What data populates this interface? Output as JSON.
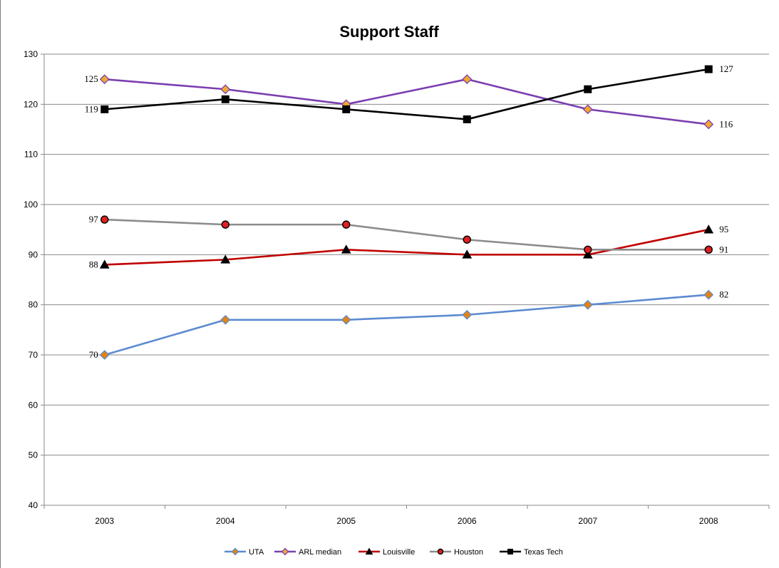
{
  "chart_data": {
    "type": "line",
    "title": "Support Staff",
    "xlabel": "",
    "ylabel": "",
    "categories": [
      "2003",
      "2004",
      "2005",
      "2006",
      "2007",
      "2008"
    ],
    "ylim": [
      40,
      130
    ],
    "yticks": [
      40,
      50,
      60,
      70,
      80,
      90,
      100,
      110,
      120,
      130
    ],
    "grid": true,
    "legend_position": "bottom",
    "series": [
      {
        "name": "UTA",
        "values": [
          70,
          77,
          77,
          78,
          80,
          82
        ],
        "color": "#5b8bd0",
        "marker": "diamond",
        "marker_fill": "#e6820e",
        "labels": [
          {
            "index": 0,
            "text": "70",
            "side": "left"
          },
          {
            "index": 5,
            "text": "82",
            "side": "right"
          }
        ]
      },
      {
        "name": "ARL median",
        "values": [
          125,
          123,
          120,
          125,
          119,
          116
        ],
        "color": "#7b3fb0",
        "marker": "diamond",
        "marker_fill": "#f0a830",
        "labels": [
          {
            "index": 0,
            "text": "125",
            "side": "left"
          },
          {
            "index": 5,
            "text": "116",
            "side": "right"
          }
        ]
      },
      {
        "name": "Louisville",
        "values": [
          88,
          89,
          91,
          90,
          90,
          95
        ],
        "color": "#c00000",
        "marker": "triangle",
        "marker_fill": "#000000",
        "labels": [
          {
            "index": 0,
            "text": "88",
            "side": "left"
          },
          {
            "index": 5,
            "text": "95",
            "side": "right"
          }
        ]
      },
      {
        "name": "Houston",
        "values": [
          97,
          96,
          96,
          93,
          91,
          91
        ],
        "color": "#8c8c8c",
        "marker": "circle",
        "marker_fill": "#e02020",
        "labels": [
          {
            "index": 0,
            "text": "97",
            "side": "left"
          },
          {
            "index": 5,
            "text": "91",
            "side": "right"
          }
        ]
      },
      {
        "name": "Texas Tech",
        "values": [
          119,
          121,
          119,
          117,
          123,
          127
        ],
        "color": "#000000",
        "marker": "square",
        "marker_fill": "#000000",
        "labels": [
          {
            "index": 0,
            "text": "119",
            "side": "left"
          },
          {
            "index": 5,
            "text": "127",
            "side": "right"
          }
        ]
      }
    ]
  }
}
